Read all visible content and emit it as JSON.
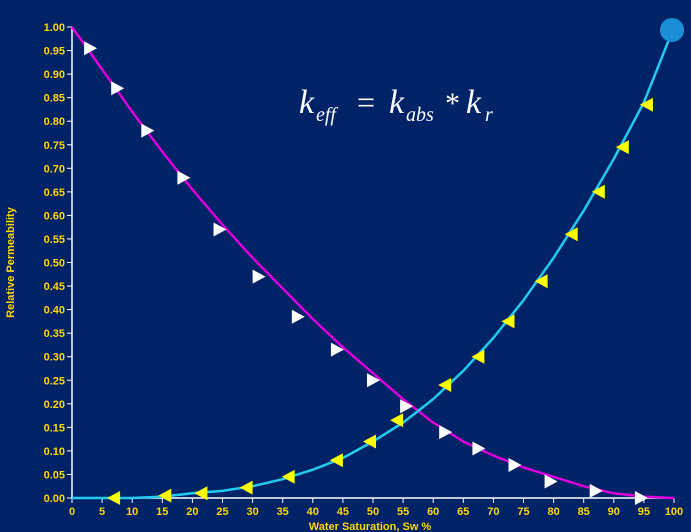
{
  "chart_data": {
    "type": "line",
    "title": "",
    "annotation": {
      "k": "k",
      "eff": "eff",
      "equals": "=",
      "abs": "abs",
      "times": "*",
      "r": "r"
    },
    "xlabel": "Water Saturation, Sw %",
    "ylabel": "Relative Permeability",
    "xlim": [
      0,
      100
    ],
    "ylim": [
      0,
      1.0
    ],
    "x_ticks": [
      "0",
      "5",
      "10",
      "15",
      "20",
      "25",
      "30",
      "35",
      "40",
      "45",
      "50",
      "55",
      "60",
      "65",
      "70",
      "75",
      "80",
      "85",
      "90",
      "95",
      "100"
    ],
    "y_ticks": [
      "0.00",
      "0.05",
      "0.10",
      "0.15",
      "0.20",
      "0.25",
      "0.30",
      "0.35",
      "0.40",
      "0.45",
      "0.50",
      "0.55",
      "0.60",
      "0.65",
      "0.70",
      "0.75",
      "0.80",
      "0.85",
      "0.90",
      "0.95",
      "1.00"
    ],
    "grid": false,
    "colors": {
      "background": "#002266",
      "frame": "#ffffff",
      "tick_text": "#ffd700",
      "oil_curve": "#dd00dd",
      "water_curve": "#22ccee",
      "oil_marker": "#ffffff",
      "water_marker": "#ffff00",
      "end_point": "#1a8fd6"
    },
    "series": [
      {
        "curve": [
          [
            0,
            1.0
          ],
          [
            5,
            0.91
          ],
          [
            10,
            0.82
          ],
          [
            15,
            0.735
          ],
          [
            20,
            0.655
          ],
          [
            25,
            0.58
          ],
          [
            30,
            0.51
          ],
          [
            35,
            0.445
          ],
          [
            40,
            0.38
          ],
          [
            45,
            0.32
          ],
          [
            50,
            0.265
          ],
          [
            55,
            0.21
          ],
          [
            60,
            0.16
          ],
          [
            65,
            0.12
          ],
          [
            70,
            0.09
          ],
          [
            75,
            0.065
          ],
          [
            80,
            0.045
          ],
          [
            85,
            0.025
          ],
          [
            90,
            0.01
          ],
          [
            95,
            0.003
          ],
          [
            100,
            0.0
          ]
        ],
        "markers_x": [
          3,
          7.5,
          12.5,
          18.5,
          24.5,
          31,
          37.5,
          44,
          50,
          55.5,
          62,
          67.5,
          73.5,
          79.5,
          87,
          94.5
        ],
        "markers_y": [
          0.955,
          0.87,
          0.78,
          0.68,
          0.57,
          0.47,
          0.385,
          0.315,
          0.25,
          0.195,
          0.14,
          0.105,
          0.07,
          0.035,
          0.015,
          0.0
        ],
        "marker": "triangle-right",
        "color_key": "oil"
      },
      {
        "curve": [
          [
            0,
            0.0
          ],
          [
            5,
            0.0
          ],
          [
            10,
            0.0
          ],
          [
            15,
            0.003
          ],
          [
            20,
            0.01
          ],
          [
            25,
            0.015
          ],
          [
            30,
            0.025
          ],
          [
            35,
            0.04
          ],
          [
            40,
            0.06
          ],
          [
            45,
            0.085
          ],
          [
            50,
            0.12
          ],
          [
            55,
            0.16
          ],
          [
            60,
            0.21
          ],
          [
            65,
            0.27
          ],
          [
            70,
            0.34
          ],
          [
            75,
            0.42
          ],
          [
            80,
            0.51
          ],
          [
            85,
            0.61
          ],
          [
            90,
            0.72
          ],
          [
            95,
            0.84
          ],
          [
            100,
            1.0
          ]
        ],
        "markers_x": [
          7,
          15.5,
          21.5,
          29,
          36,
          44,
          49.5,
          54,
          62,
          67.5,
          72.5,
          78,
          83,
          87.5,
          91.5,
          95.5
        ],
        "markers_y": [
          0.0,
          0.005,
          0.01,
          0.022,
          0.045,
          0.08,
          0.12,
          0.165,
          0.24,
          0.3,
          0.375,
          0.46,
          0.56,
          0.65,
          0.745,
          0.835
        ],
        "marker": "triangle-left",
        "color_key": "water"
      }
    ],
    "end_point": [
      100,
      1.0
    ]
  }
}
